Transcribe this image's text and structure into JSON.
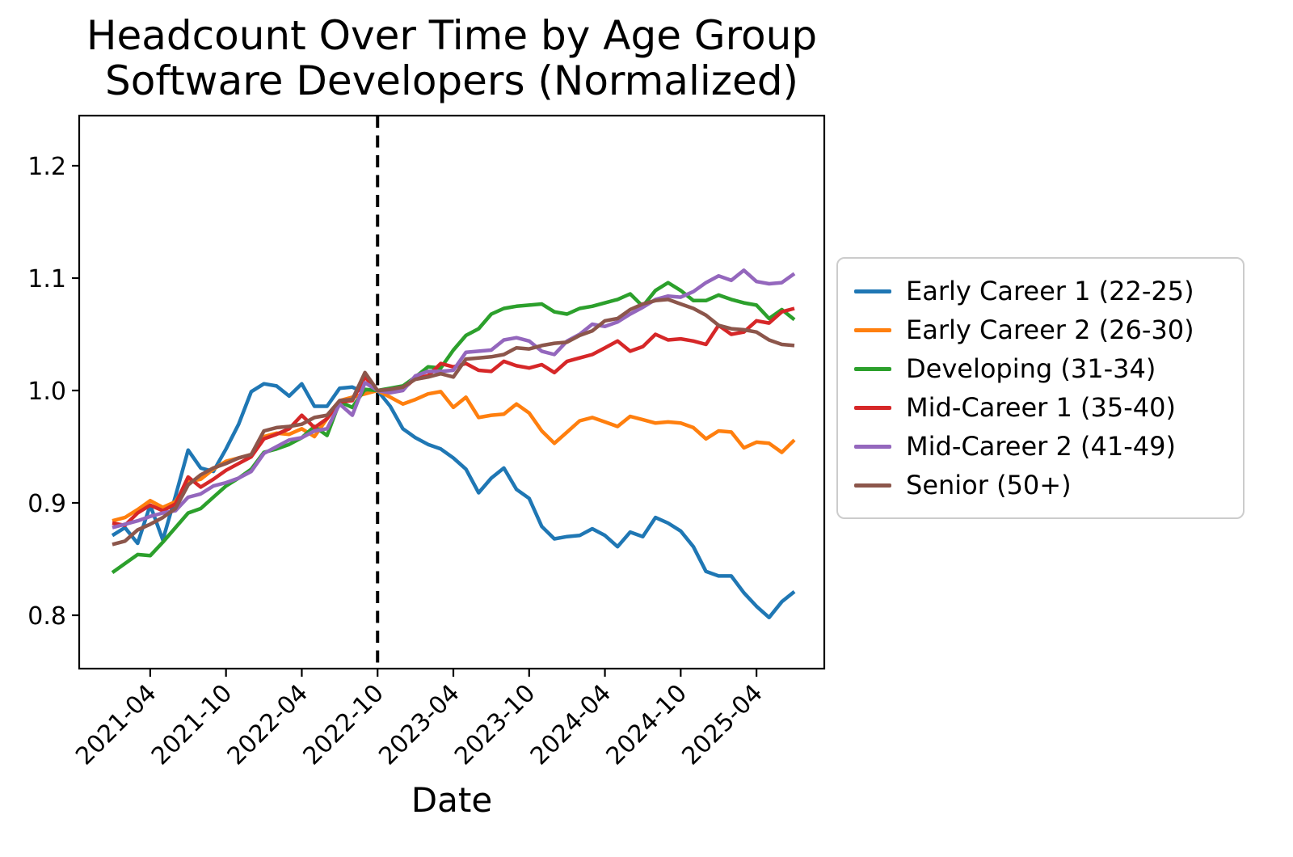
{
  "title": {
    "line1": "Headcount Over Time by Age Group",
    "line2": "Software Developers (Normalized)"
  },
  "chart_data": {
    "type": "line",
    "title": "Headcount Over Time by Age Group Software Developers (Normalized)",
    "xlabel": "Date",
    "ylabel": "",
    "grid": false,
    "legend_position": "right of plot",
    "x_start_month": "2021-01",
    "x_end_month": "2025-07",
    "x_tick_labels": [
      "2021-04",
      "2021-10",
      "2022-04",
      "2022-10",
      "2023-04",
      "2023-10",
      "2024-04",
      "2024-10",
      "2025-04"
    ],
    "x_tick_indices": [
      3,
      9,
      15,
      21,
      27,
      33,
      39,
      45,
      51
    ],
    "y_ticks": [
      0.8,
      0.9,
      1.0,
      1.1,
      1.2
    ],
    "y_tick_labels": [
      "0.8",
      "0.9",
      "1.0",
      "1.1",
      "1.2"
    ],
    "ylim": [
      0.752,
      1.245
    ],
    "vline": {
      "x_index": 21,
      "month": "2022-10",
      "style": "dashed",
      "color": "#000000"
    },
    "series": [
      {
        "name": "Early Career 1 (22-25)",
        "color": "#1f77b4",
        "values": [
          0.871,
          0.878,
          0.864,
          0.898,
          0.867,
          0.906,
          0.947,
          0.931,
          0.928,
          0.948,
          0.97,
          0.999,
          1.006,
          1.004,
          0.995,
          1.006,
          0.986,
          0.986,
          1.002,
          1.003,
          0.998,
          1.0,
          0.986,
          0.966,
          0.958,
          0.952,
          0.948,
          0.94,
          0.93,
          0.909,
          0.922,
          0.931,
          0.912,
          0.904,
          0.879,
          0.868,
          0.87,
          0.871,
          0.877,
          0.871,
          0.861,
          0.874,
          0.87,
          0.887,
          0.882,
          0.875,
          0.861,
          0.839,
          0.835,
          0.835,
          0.82,
          0.808,
          0.798,
          0.812,
          0.821
        ]
      },
      {
        "name": "Early Career 2 (26-30)",
        "color": "#ff7f0e",
        "values": [
          0.884,
          0.887,
          0.894,
          0.902,
          0.896,
          0.901,
          0.919,
          0.921,
          0.93,
          0.937,
          0.94,
          0.943,
          0.959,
          0.962,
          0.961,
          0.966,
          0.959,
          0.975,
          0.991,
          0.994,
          0.997,
          1.0,
          0.994,
          0.988,
          0.992,
          0.997,
          0.999,
          0.985,
          0.994,
          0.976,
          0.978,
          0.979,
          0.988,
          0.98,
          0.964,
          0.953,
          0.963,
          0.973,
          0.976,
          0.972,
          0.968,
          0.977,
          0.974,
          0.971,
          0.972,
          0.971,
          0.967,
          0.957,
          0.964,
          0.963,
          0.949,
          0.954,
          0.953,
          0.945,
          0.956
        ]
      },
      {
        "name": "Developing (31-34)",
        "color": "#2ca02c",
        "values": [
          0.838,
          0.846,
          0.854,
          0.853,
          0.865,
          0.878,
          0.891,
          0.895,
          0.905,
          0.915,
          0.922,
          0.93,
          0.945,
          0.948,
          0.952,
          0.958,
          0.968,
          0.96,
          0.99,
          0.985,
          1.001,
          1.0,
          1.002,
          1.004,
          1.012,
          1.021,
          1.02,
          1.036,
          1.049,
          1.055,
          1.068,
          1.073,
          1.075,
          1.076,
          1.077,
          1.07,
          1.068,
          1.073,
          1.075,
          1.078,
          1.081,
          1.086,
          1.075,
          1.089,
          1.096,
          1.089,
          1.08,
          1.08,
          1.085,
          1.081,
          1.078,
          1.076,
          1.064,
          1.072,
          1.063
        ]
      },
      {
        "name": "Mid-Career 1 (35-40)",
        "color": "#d62728",
        "values": [
          0.882,
          0.88,
          0.891,
          0.898,
          0.893,
          0.899,
          0.923,
          0.914,
          0.921,
          0.929,
          0.935,
          0.941,
          0.957,
          0.961,
          0.966,
          0.978,
          0.967,
          0.975,
          0.99,
          0.991,
          1.012,
          1.0,
          0.999,
          1.001,
          1.011,
          1.013,
          1.024,
          1.021,
          1.024,
          1.018,
          1.017,
          1.026,
          1.022,
          1.02,
          1.023,
          1.016,
          1.026,
          1.029,
          1.032,
          1.038,
          1.044,
          1.035,
          1.039,
          1.05,
          1.045,
          1.046,
          1.044,
          1.041,
          1.058,
          1.05,
          1.052,
          1.062,
          1.06,
          1.07,
          1.073
        ]
      },
      {
        "name": "Mid-Career 2 (41-49)",
        "color": "#9467bd",
        "values": [
          0.878,
          0.881,
          0.884,
          0.888,
          0.891,
          0.893,
          0.905,
          0.908,
          0.915,
          0.918,
          0.922,
          0.928,
          0.944,
          0.95,
          0.956,
          0.958,
          0.964,
          0.966,
          0.988,
          0.978,
          1.007,
          1.0,
          0.998,
          1.0,
          1.013,
          1.017,
          1.017,
          1.018,
          1.034,
          1.035,
          1.036,
          1.045,
          1.047,
          1.044,
          1.035,
          1.032,
          1.044,
          1.05,
          1.059,
          1.057,
          1.061,
          1.068,
          1.074,
          1.081,
          1.084,
          1.083,
          1.088,
          1.096,
          1.102,
          1.098,
          1.107,
          1.097,
          1.095,
          1.096,
          1.104
        ]
      },
      {
        "name": "Senior (50+)",
        "color": "#8c564b",
        "values": [
          0.863,
          0.866,
          0.876,
          0.881,
          0.887,
          0.895,
          0.916,
          0.925,
          0.931,
          0.935,
          0.94,
          0.943,
          0.964,
          0.967,
          0.968,
          0.97,
          0.976,
          0.978,
          0.991,
          0.992,
          1.016,
          1.0,
          1.001,
          1.003,
          1.01,
          1.012,
          1.015,
          1.012,
          1.028,
          1.029,
          1.03,
          1.032,
          1.038,
          1.037,
          1.04,
          1.042,
          1.043,
          1.049,
          1.053,
          1.062,
          1.064,
          1.072,
          1.077,
          1.08,
          1.081,
          1.077,
          1.073,
          1.067,
          1.058,
          1.055,
          1.054,
          1.052,
          1.045,
          1.041,
          1.04
        ]
      }
    ]
  }
}
